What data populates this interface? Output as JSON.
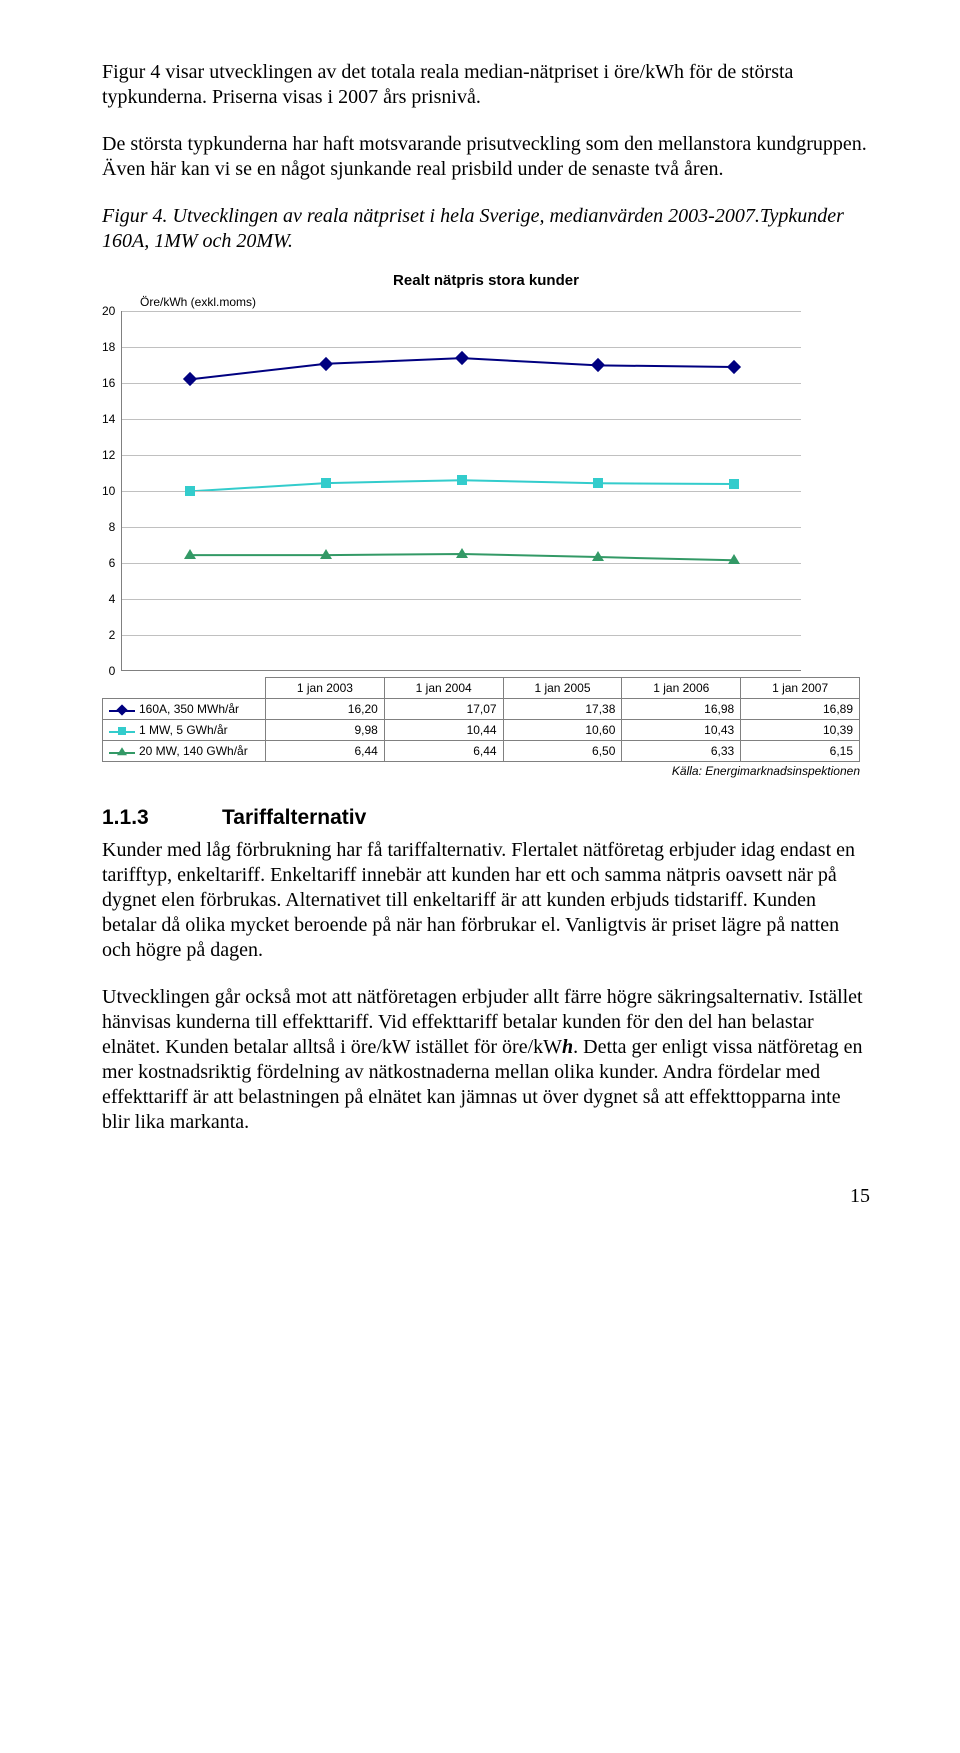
{
  "para1": "Figur 4 visar utvecklingen av det totala reala median-nätpriset i öre/kWh för de största typkunderna. Priserna visas i 2007 års prisnivå.",
  "para2": "De största typkunderna har haft motsvarande prisutveckling som den mellanstora kundgruppen. Även här kan vi se en något sjunkande real prisbild under de senaste två åren.",
  "fig_caption": "Figur 4. Utvecklingen av reala nätpriset i hela Sverige, medianvärden 2003-2007.Typkunder 160A, 1MW och 20MW.",
  "chart": {
    "title": "Realt nätpris stora kunder",
    "y_unit": "Öre/kWh (exkl.moms)",
    "y_ticks": [
      "20",
      "18",
      "16",
      "14",
      "12",
      "10",
      "8",
      "6",
      "4",
      "2",
      "0"
    ],
    "y_max": 20,
    "y_step": 2,
    "categories": [
      "1 jan 2003",
      "1 jan 2004",
      "1 jan 2005",
      "1 jan 2006",
      "1 jan 2007"
    ],
    "series": [
      {
        "name": "160A, 350 MWh/år",
        "color": "#000080",
        "marker": "diamond",
        "values": [
          16.2,
          17.07,
          17.38,
          16.98,
          16.89
        ],
        "value_labels": [
          "16,20",
          "17,07",
          "17,38",
          "16,98",
          "16,89"
        ]
      },
      {
        "name": "1 MW, 5 GWh/år",
        "color": "#33cccc",
        "marker": "square",
        "values": [
          9.98,
          10.44,
          10.6,
          10.43,
          10.39
        ],
        "value_labels": [
          "9,98",
          "10,44",
          "10,60",
          "10,43",
          "10,39"
        ]
      },
      {
        "name": "20 MW, 140 GWh/år",
        "color": "#339966",
        "marker": "triangle",
        "values": [
          6.44,
          6.44,
          6.5,
          6.33,
          6.15
        ],
        "value_labels": [
          "6,44",
          "6,44",
          "6,50",
          "6,33",
          "6,15"
        ]
      }
    ],
    "source": "Källa: Energimarknadsinspektionen"
  },
  "section": {
    "num": "1.1.3",
    "title": "Tariffalternativ",
    "p1": "Kunder med låg förbrukning har få tariffalternativ. Flertalet nätföretag erbjuder idag endast en tarifftyp, enkeltariff. Enkeltariff innebär att kunden har ett och samma nätpris oavsett när på dygnet elen förbrukas. Alternativet till enkeltariff är att kunden erbjuds tidstariff. Kunden betalar då olika mycket beroende på när han förbrukar el. Vanligtvis är priset lägre på natten och högre på dagen.",
    "p2_a": "Utvecklingen går också mot att nätföretagen erbjuder allt färre högre säkringsalternativ. Istället hänvisas kunderna till effekttariff. Vid effekttariff betalar kunden för den del han belastar elnätet. Kunden betalar alltså i öre/kW istället för öre/kW",
    "p2_b": ". Detta ger enligt vissa nätföretag en mer kostnadsriktig fördelning av nätkostnaderna mellan olika kunder. Andra fördelar med effekttariff är att belastningen på elnätet kan jämnas ut över dygnet så att effekttopparna inte blir lika markanta.",
    "p2_h": "h"
  },
  "pagenum": "15"
}
